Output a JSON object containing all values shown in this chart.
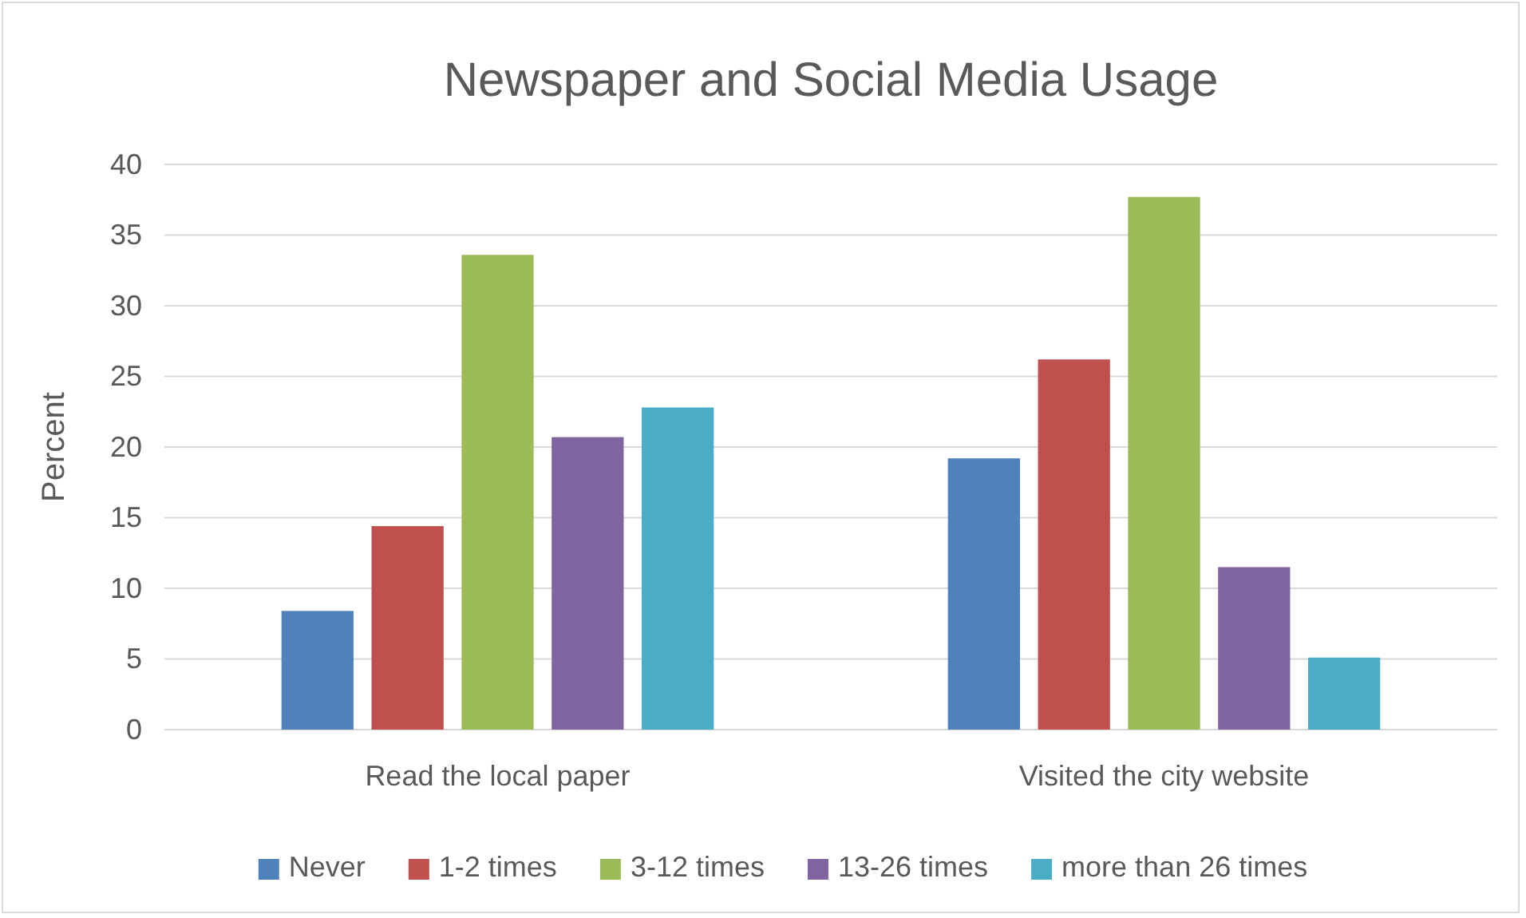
{
  "chart_data": {
    "type": "bar",
    "title": "Newspaper and Social Media Usage",
    "ylabel": "Percent",
    "categories": [
      "Read the local paper",
      "Visited the city website"
    ],
    "series": [
      {
        "name": "Never",
        "color": "#4f81bd",
        "values": [
          8.4,
          19.2
        ]
      },
      {
        "name": "1-2 times",
        "color": "#c0504d",
        "values": [
          14.4,
          26.2
        ]
      },
      {
        "name": "3-12 times",
        "color": "#9bbb59",
        "values": [
          33.6,
          37.7
        ]
      },
      {
        "name": "13-26 times",
        "color": "#8064a2",
        "values": [
          20.7,
          11.5
        ]
      },
      {
        "name": "more than 26 times",
        "color": "#4bacc6",
        "values": [
          22.8,
          5.1
        ]
      }
    ],
    "ylim": [
      0,
      40
    ],
    "yticks": [
      0,
      5,
      10,
      15,
      20,
      25,
      30,
      35,
      40
    ],
    "grid": "y",
    "legend": "bottom"
  }
}
